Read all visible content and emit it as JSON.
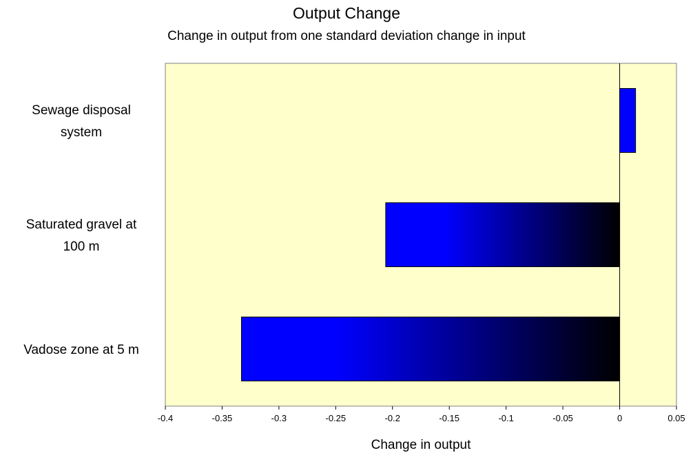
{
  "chart_data": {
    "type": "bar",
    "orientation": "horizontal",
    "title": "Output Change",
    "subtitle": "Change in output from one standard deviation change in input",
    "xlabel": "Change in output",
    "ylabel": "",
    "categories": [
      [
        "Sewage disposal",
        "system"
      ],
      [
        "Saturated gravel at",
        "100 m"
      ],
      [
        "Vadose zone at 5 m"
      ]
    ],
    "values": [
      0.014,
      -0.206,
      -0.333
    ],
    "xlim": [
      -0.4,
      0.05
    ],
    "xticks": [
      "-0.4",
      "-0.35",
      "-0.3",
      "-0.25",
      "-0.2",
      "-0.15",
      "-0.1",
      "-0.05",
      "0",
      "0.05"
    ],
    "grid": false,
    "legend": "none",
    "colors": {
      "plot_background": "#FFFFCC",
      "bar_start": "#0000FF",
      "bar_end": "#000000",
      "axis": "#000000"
    }
  }
}
